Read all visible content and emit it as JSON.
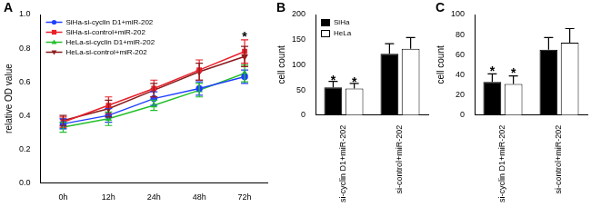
{
  "chart_data": [
    {
      "type": "line",
      "label": "A",
      "y_label": "relative OD value",
      "categories": [
        "0h",
        "12h",
        "24h",
        "48h",
        "72h"
      ],
      "ylim": [
        0,
        1
      ],
      "yticks": [
        {
          "value": 0,
          "label": "0.0"
        },
        0.2,
        0.4,
        0.6,
        0.8,
        {
          "value": 1,
          "label": "1.0"
        }
      ],
      "grid": false,
      "legend": "upper left",
      "series": [
        {
          "name": "SiHa-si-cyclin D1+miR-202",
          "color": "#1f3fff",
          "marker": "circle",
          "values": [
            0.35,
            0.4,
            0.5,
            0.56,
            0.63
          ],
          "errors": [
            0.03,
            0.04,
            0.04,
            0.04,
            0.04
          ]
        },
        {
          "name": "SiHa-si-control+miR-202",
          "color": "#e8202a",
          "marker": "square",
          "values": [
            0.36,
            0.46,
            0.56,
            0.67,
            0.78
          ],
          "errors": [
            0.03,
            0.05,
            0.05,
            0.06,
            0.07
          ]
        },
        {
          "name": "HeLa-si-cyclin D1+miR-202",
          "color": "#22c02a",
          "marker": "triangle",
          "values": [
            0.33,
            0.38,
            0.46,
            0.55,
            0.65
          ],
          "errors": [
            0.03,
            0.04,
            0.03,
            0.04,
            0.05
          ]
        },
        {
          "name": "HeLa-si-control+miR-202",
          "color": "#8b1a1a",
          "marker": "triangle-down",
          "values": [
            0.37,
            0.44,
            0.55,
            0.66,
            0.75
          ],
          "errors": [
            0.03,
            0.05,
            0.04,
            0.05,
            0.06
          ]
        }
      ],
      "annotations": [
        {
          "text": "*",
          "x": "72h",
          "y": 0.88
        }
      ]
    },
    {
      "type": "bar",
      "label": "B",
      "y_label": "cell count",
      "categories": [
        "si-cyclin D1+miR-202",
        "si-control+miR-202"
      ],
      "ylim": [
        0,
        200
      ],
      "yticks": [
        0,
        50,
        100,
        150,
        200
      ],
      "grid": false,
      "legend": "upper left",
      "series": [
        {
          "name": "SiHa",
          "color": "#000000",
          "values": [
            55,
            122
          ],
          "errors": [
            12,
            20
          ]
        },
        {
          "name": "HeLa",
          "color": "#ffffff",
          "values": [
            53,
            132
          ],
          "errors": [
            10,
            22
          ]
        }
      ],
      "annotations": [
        {
          "text": "*",
          "x": "si-cyclin D1+miR-202",
          "series": "SiHa",
          "y": 74
        },
        {
          "text": "*",
          "x": "si-cyclin D1+miR-202",
          "series": "HeLa",
          "y": 70
        }
      ]
    },
    {
      "type": "bar",
      "label": "C",
      "y_label": "cell count",
      "categories": [
        "si-cyclin D1+miR-202",
        "si-control+miR-202"
      ],
      "ylim": [
        0,
        100
      ],
      "yticks": [
        0,
        20,
        40,
        60,
        80,
        100
      ],
      "grid": false,
      "series": [
        {
          "name": "SiHa",
          "color": "#000000",
          "values": [
            33,
            65
          ],
          "errors": [
            8,
            12
          ]
        },
        {
          "name": "HeLa",
          "color": "#ffffff",
          "values": [
            31,
            72
          ],
          "errors": [
            8,
            14
          ]
        }
      ],
      "annotations": [
        {
          "text": "*",
          "x": "si-cyclin D1+miR-202",
          "series": "SiHa",
          "y": 46
        },
        {
          "text": "*",
          "x": "si-cyclin D1+miR-202",
          "series": "HeLa",
          "y": 44
        }
      ]
    }
  ]
}
